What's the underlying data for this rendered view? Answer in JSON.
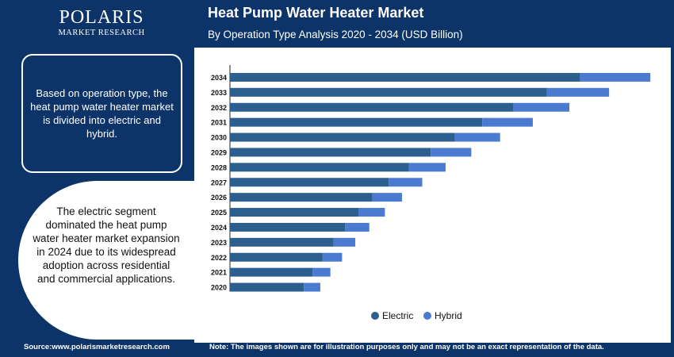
{
  "brand": {
    "name": "POLARIS",
    "sub": "MARKET RESEARCH"
  },
  "header": {
    "title": "Heat Pump Water Heater Market",
    "subtitle": "By Operation Type Analysis 2020 - 2034 (USD Billion)"
  },
  "sidebar": {
    "info": "Based on operation type, the heat pump water heater market is divided into electric and hybrid.",
    "highlight": "The electric segment dominated the heat pump water heater market expansion in 2024 due to its widespread adoption across residential and commercial applications."
  },
  "footer": {
    "source": "Source:www.polarismarketresearch.com",
    "note": "Note: The images shown are for illustration purposes only and may not be an exact representation of the data."
  },
  "colors": {
    "electric": "#2c5f8e",
    "hybrid": "#4a7bd0",
    "navy": "#0d3469"
  },
  "chart_data": {
    "type": "bar",
    "orientation": "horizontal",
    "stacked": true,
    "title": "",
    "xlabel": "",
    "ylabel": "",
    "categories": [
      "2034",
      "2033",
      "2032",
      "2031",
      "2030",
      "2029",
      "2028",
      "2027",
      "2026",
      "2025",
      "2024",
      "2023",
      "2022",
      "2021",
      "2020"
    ],
    "series": [
      {
        "name": "Electric",
        "values": [
          4.5,
          4.07,
          3.64,
          3.24,
          2.89,
          2.58,
          2.3,
          2.04,
          1.83,
          1.65,
          1.48,
          1.33,
          1.19,
          1.06,
          0.95
        ]
      },
      {
        "name": "Hybrid",
        "values": [
          0.9,
          0.8,
          0.72,
          0.65,
          0.58,
          0.52,
          0.47,
          0.43,
          0.38,
          0.34,
          0.31,
          0.28,
          0.25,
          0.23,
          0.21
        ]
      }
    ],
    "xlim": [
      0,
      5.5
    ],
    "grid": false,
    "legend": "bottom-center"
  }
}
